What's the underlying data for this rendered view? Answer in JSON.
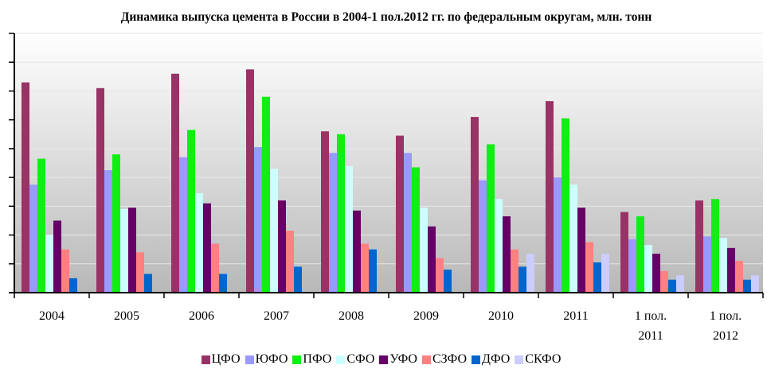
{
  "chart_data": {
    "type": "bar",
    "title": "Динамика выпуска цемента в России в 2004-1 пол.2012 гг. по федеральным округам, млн. тонн",
    "categories": [
      "2004",
      "2005",
      "2006",
      "2007",
      "2008",
      "2009",
      "2010",
      "2011",
      "1 пол. 2011",
      "1 пол. 2012"
    ],
    "series": [
      {
        "name": "ЦФО",
        "color": "#993366",
        "values": [
          14.6,
          14.2,
          15.2,
          15.5,
          11.2,
          10.9,
          12.2,
          13.3,
          5.6,
          6.4
        ]
      },
      {
        "name": "ЮФО",
        "color": "#9999ff",
        "values": [
          7.5,
          8.5,
          9.4,
          10.1,
          9.7,
          9.7,
          7.8,
          8.0,
          3.7,
          3.9
        ]
      },
      {
        "name": "ПФО",
        "color": "#11ee11",
        "values": [
          9.3,
          9.6,
          11.3,
          13.6,
          11.0,
          8.7,
          10.3,
          12.1,
          5.3,
          6.5
        ]
      },
      {
        "name": "СФО",
        "color": "#ccffff",
        "values": [
          4.0,
          5.8,
          6.9,
          8.6,
          8.8,
          5.9,
          6.5,
          7.5,
          3.3,
          3.8
        ]
      },
      {
        "name": "УФО",
        "color": "#660066",
        "values": [
          5.0,
          5.9,
          6.2,
          6.4,
          5.7,
          4.6,
          5.3,
          5.9,
          2.7,
          3.1
        ]
      },
      {
        "name": "СЗФО",
        "color": "#ff8080",
        "values": [
          3.0,
          2.8,
          3.4,
          4.3,
          3.4,
          2.4,
          3.0,
          3.5,
          1.5,
          2.2
        ]
      },
      {
        "name": "ДФО",
        "color": "#0066cc",
        "values": [
          1.0,
          1.3,
          1.3,
          1.8,
          3.0,
          1.6,
          1.8,
          2.1,
          0.9,
          0.9
        ]
      },
      {
        "name": "СКФО",
        "color": "#ccccff",
        "values": [
          null,
          null,
          null,
          null,
          null,
          null,
          2.7,
          2.7,
          1.2,
          1.2
        ]
      }
    ],
    "ylim": [
      0,
      18
    ],
    "yticks": [
      0,
      2,
      4,
      6,
      8,
      10,
      12,
      14,
      16,
      18
    ],
    "grid": true
  }
}
